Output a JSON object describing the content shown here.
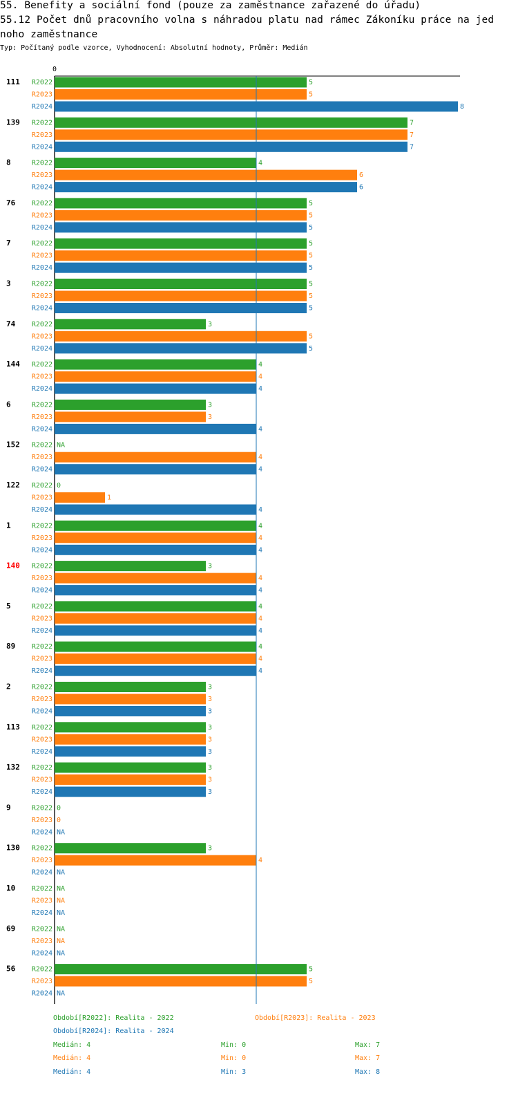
{
  "header": {
    "title_line1": "55. Benefity a sociální fond (pouze za zaměstnance zařazené do úřadu)",
    "title_line2": "55.12 Počet dnů pracovního volna s náhradou platu nad rámec Zákoníku práce na jed",
    "title_line3": "noho zaměstnance",
    "subtitle": "Typ: Počítaný podle vzorce, Vyhodnocení: Absolutní hodnoty, Průměr: Medián"
  },
  "colors": {
    "R2022": "#2ca02c",
    "R2023": "#ff7f0e",
    "R2024": "#1f77b4",
    "highlight": "#ff0000",
    "median_line": "#1f77b4"
  },
  "chart_data": {
    "type": "bar",
    "orientation": "horizontal",
    "axis_tick_label": "0",
    "xlim": [
      0,
      8
    ],
    "reference_line": {
      "label": "median",
      "value": 4
    },
    "series_names": [
      "R2022",
      "R2023",
      "R2024"
    ],
    "highlighted_group": "140",
    "groups": [
      {
        "label": "111",
        "values": [
          5,
          5,
          8
        ]
      },
      {
        "label": "139",
        "values": [
          7,
          7,
          7
        ]
      },
      {
        "label": "8",
        "values": [
          4,
          6,
          6
        ]
      },
      {
        "label": "76",
        "values": [
          5,
          5,
          5
        ]
      },
      {
        "label": "7",
        "values": [
          5,
          5,
          5
        ]
      },
      {
        "label": "3",
        "values": [
          5,
          5,
          5
        ]
      },
      {
        "label": "74",
        "values": [
          3,
          5,
          5
        ]
      },
      {
        "label": "144",
        "values": [
          4,
          4,
          4
        ]
      },
      {
        "label": "6",
        "values": [
          3,
          3,
          4
        ]
      },
      {
        "label": "152",
        "values": [
          "NA",
          4,
          4
        ]
      },
      {
        "label": "122",
        "values": [
          0,
          1,
          4
        ]
      },
      {
        "label": "1",
        "values": [
          4,
          4,
          4
        ]
      },
      {
        "label": "140",
        "values": [
          3,
          4,
          4
        ]
      },
      {
        "label": "5",
        "values": [
          4,
          4,
          4
        ]
      },
      {
        "label": "89",
        "values": [
          4,
          4,
          4
        ]
      },
      {
        "label": "2",
        "values": [
          3,
          3,
          3
        ]
      },
      {
        "label": "113",
        "values": [
          3,
          3,
          3
        ]
      },
      {
        "label": "132",
        "values": [
          3,
          3,
          3
        ]
      },
      {
        "label": "9",
        "values": [
          0,
          0,
          "NA"
        ]
      },
      {
        "label": "130",
        "values": [
          3,
          4,
          "NA"
        ]
      },
      {
        "label": "10",
        "values": [
          "NA",
          "NA",
          "NA"
        ]
      },
      {
        "label": "69",
        "values": [
          "NA",
          "NA",
          "NA"
        ]
      },
      {
        "label": "56",
        "values": [
          5,
          5,
          "NA"
        ]
      }
    ]
  },
  "legend": {
    "period_2022": "Období[R2022]: Realita - 2022",
    "period_2023": "Období[R2023]: Realita - 2023",
    "period_2024": "Období[R2024]: Realita - 2024",
    "stats": [
      {
        "series": "R2022",
        "median": "Medián: 4",
        "min": "Min: 0",
        "max": "Max: 7"
      },
      {
        "series": "R2023",
        "median": "Medián: 4",
        "min": "Min: 0",
        "max": "Max: 7"
      },
      {
        "series": "R2024",
        "median": "Medián: 4",
        "min": "Min: 3",
        "max": "Max: 8"
      }
    ]
  }
}
